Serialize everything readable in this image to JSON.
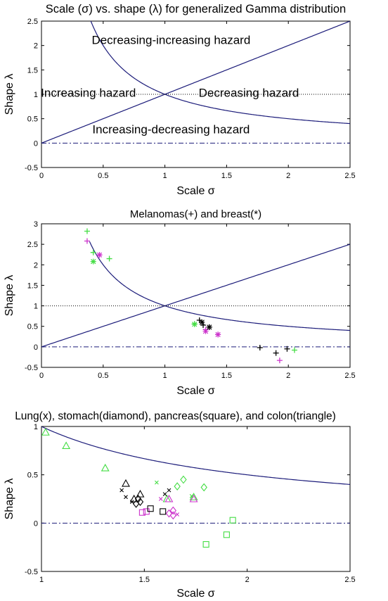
{
  "chart_data": [
    {
      "type": "line",
      "title": "Scale (σ) vs. shape (λ) for generalized Gamma distribution",
      "xlabel": "Scale σ",
      "ylabel": "Shape λ",
      "xlim": [
        0,
        2.5
      ],
      "ylim": [
        -0.5,
        2.5
      ],
      "xticks": [
        "0",
        "0.5",
        "1",
        "1.5",
        "2",
        "2.5"
      ],
      "yticks": [
        "-0.5",
        "0",
        "0.5",
        "1",
        "1.5",
        "2",
        "2.5"
      ],
      "grid": false,
      "series": [
        {
          "curve": "lambda = sigma",
          "color": "#1c1c7a",
          "style": "solid"
        },
        {
          "curve": "lambda = 1/sigma",
          "color": "#1c1c7a",
          "style": "solid"
        },
        {
          "curve": "lambda = 1",
          "color": "#000000",
          "style": "dotted"
        },
        {
          "curve": "lambda = 0",
          "color": "#1c1c7a",
          "style": "dash-dot"
        }
      ],
      "annotations": [
        {
          "text": "Decreasing-increasing hazard",
          "x": 1.05,
          "y": 2.03
        },
        {
          "text": "Increasing hazard",
          "x": 0.38,
          "y": 0.95
        },
        {
          "text": "Decreasing hazard",
          "x": 1.68,
          "y": 0.95
        },
        {
          "text": "Increasing-decreasing hazard",
          "x": 1.05,
          "y": 0.2
        }
      ]
    },
    {
      "type": "scatter",
      "title": "Melanomas(+) and breast(*)",
      "xlabel": "Scale σ",
      "ylabel": "Shape λ",
      "xlim": [
        0,
        2.5
      ],
      "ylim": [
        -0.5,
        3
      ],
      "xticks": [
        "0",
        "0.5",
        "1",
        "1.5",
        "2",
        "2.5"
      ],
      "yticks": [
        "-0.5",
        "0",
        "0.5",
        "1",
        "1.5",
        "2",
        "2.5",
        "3"
      ],
      "grid": false,
      "reference_curves": [
        "lambda = sigma",
        "lambda = 1/sigma",
        "lambda = 1 (dotted)",
        "lambda = 0 (dash-dot)"
      ],
      "series": [
        {
          "marker": "plus",
          "color": "#44dd44",
          "points": [
            [
              0.37,
              2.82
            ],
            [
              0.42,
              2.3
            ],
            [
              0.55,
              2.15
            ],
            [
              1.24,
              0.56
            ],
            [
              2.05,
              -0.08
            ]
          ]
        },
        {
          "marker": "plus",
          "color": "#cc33cc",
          "points": [
            [
              0.37,
              2.58
            ],
            [
              0.47,
              2.24
            ],
            [
              1.33,
              0.42
            ],
            [
              1.43,
              0.3
            ],
            [
              1.93,
              -0.33
            ]
          ]
        },
        {
          "marker": "plus",
          "color": "#000000",
          "points": [
            [
              1.28,
              0.65
            ],
            [
              1.31,
              0.53
            ],
            [
              1.36,
              0.48
            ],
            [
              1.77,
              -0.02
            ],
            [
              1.9,
              -0.15
            ],
            [
              1.99,
              -0.05
            ]
          ]
        },
        {
          "marker": "star",
          "color": "#44dd44",
          "points": [
            [
              0.42,
              2.08
            ],
            [
              1.24,
              0.55
            ]
          ]
        },
        {
          "marker": "star",
          "color": "#cc33cc",
          "points": [
            [
              0.47,
              2.24
            ],
            [
              1.33,
              0.38
            ],
            [
              1.43,
              0.3
            ]
          ]
        },
        {
          "marker": "star",
          "color": "#000000",
          "points": [
            [
              1.3,
              0.6
            ],
            [
              1.36,
              0.48
            ]
          ]
        }
      ]
    },
    {
      "type": "scatter",
      "title": "Lung(x), stomach(diamond), pancreas(square), and colon(triangle)",
      "xlabel": "Scale σ",
      "ylabel": "Shape λ",
      "xlim": [
        1,
        2.5
      ],
      "ylim": [
        -0.5,
        1
      ],
      "xticks": [
        "1",
        "1.5",
        "2",
        "2.5"
      ],
      "yticks": [
        "-0.5",
        "0",
        "0.5",
        "1"
      ],
      "grid": false,
      "reference_curves": [
        "lambda = 1/sigma",
        "lambda = 0 (dash-dot)"
      ],
      "series": [
        {
          "marker": "triangle",
          "color": "#44dd44",
          "points": [
            [
              1.02,
              0.94
            ],
            [
              1.12,
              0.8
            ],
            [
              1.31,
              0.57
            ],
            [
              1.61,
              0.25
            ],
            [
              1.74,
              0.27
            ]
          ]
        },
        {
          "marker": "triangle",
          "color": "#cc33cc",
          "points": [
            [
              1.62,
              0.25
            ],
            [
              1.74,
              0.25
            ]
          ]
        },
        {
          "marker": "triangle",
          "color": "#000000",
          "points": [
            [
              1.41,
              0.41
            ],
            [
              1.45,
              0.25
            ],
            [
              1.48,
              0.3
            ]
          ]
        },
        {
          "marker": "x",
          "color": "#000000",
          "points": [
            [
              1.39,
              0.34
            ],
            [
              1.41,
              0.27
            ],
            [
              1.44,
              0.22
            ],
            [
              1.62,
              0.34
            ],
            [
              1.6,
              0.3
            ]
          ]
        },
        {
          "marker": "x",
          "color": "#44dd44",
          "points": [
            [
              1.56,
              0.42
            ],
            [
              1.73,
              0.28
            ]
          ]
        },
        {
          "marker": "x",
          "color": "#cc33cc",
          "points": [
            [
              1.58,
              0.25
            ],
            [
              1.66,
              0.09
            ]
          ]
        },
        {
          "marker": "diamond",
          "color": "#000000",
          "points": [
            [
              1.46,
              0.2
            ],
            [
              1.47,
              0.25
            ],
            [
              1.48,
              0.22
            ]
          ]
        },
        {
          "marker": "diamond",
          "color": "#44dd44",
          "points": [
            [
              1.66,
              0.38
            ],
            [
              1.69,
              0.45
            ],
            [
              1.79,
              0.37
            ]
          ]
        },
        {
          "marker": "diamond",
          "color": "#cc33cc",
          "points": [
            [
              1.62,
              0.1
            ],
            [
              1.64,
              0.13
            ],
            [
              1.64,
              0.08
            ]
          ]
        },
        {
          "marker": "square",
          "color": "#44dd44",
          "points": [
            [
              1.8,
              -0.22
            ],
            [
              1.9,
              -0.12
            ],
            [
              1.93,
              0.03
            ]
          ]
        },
        {
          "marker": "square",
          "color": "#cc33cc",
          "points": [
            [
              1.49,
              0.11
            ],
            [
              1.51,
              0.12
            ]
          ]
        },
        {
          "marker": "square",
          "color": "#000000",
          "points": [
            [
              1.53,
              0.15
            ],
            [
              1.59,
              0.12
            ]
          ]
        }
      ]
    }
  ]
}
